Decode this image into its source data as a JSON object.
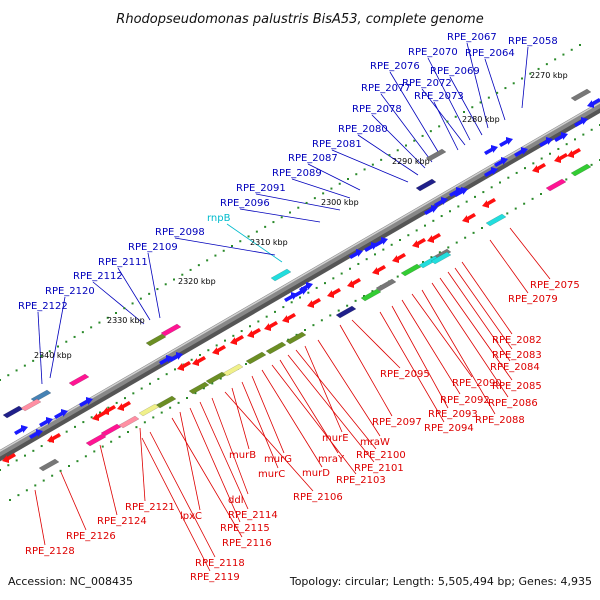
{
  "title": "Rhodopseudomonas palustris BisA53, complete genome",
  "footer": {
    "accession": "Accession: NC_008435",
    "summary": "Topology: circular; Length: 5,505,494 bp; Genes: 4,935"
  },
  "colors": {
    "upper_label": "#0000bb",
    "lower_label": "#dd0000",
    "rna_label": "#00bbcc",
    "backbone": "#888888"
  },
  "kbp_marks": [
    "2270 kbp",
    "2280 kbp",
    "2290 kbp",
    "2300 kbp",
    "2310 kbp",
    "2320 kbp",
    "2330 kbp",
    "2340 kbp"
  ],
  "upper_labels": [
    "RPE_2058",
    "RPE_2064",
    "RPE_2067",
    "RPE_2069",
    "RPE_2070",
    "RPE_2072",
    "RPE_2073",
    "RPE_2076",
    "RPE_2077",
    "RPE_2078",
    "RPE_2080",
    "RPE_2081",
    "RPE_2087",
    "RPE_2089",
    "RPE_2091",
    "RPE_2096",
    "rnpB",
    "RPE_2098",
    "RPE_2109",
    "RPE_2111",
    "RPE_2112",
    "RPE_2120",
    "RPE_2122"
  ],
  "lower_labels": [
    "RPE_2075",
    "RPE_2079",
    "RPE_2082",
    "RPE_2083",
    "RPE_2084",
    "RPE_2085",
    "RPE_2086",
    "RPE_2088",
    "RPE_2090",
    "RPE_2092",
    "RPE_2093",
    "RPE_2094",
    "RPE_2095",
    "RPE_2097",
    "mraW",
    "murE",
    "RPE_2100",
    "RPE_2101",
    "mraY",
    "RPE_2103",
    "murD",
    "murG",
    "murC",
    "murB",
    "RPE_2106",
    "ddl",
    "RPE_2114",
    "RPE_2115",
    "lpxC",
    "RPE_2116",
    "RPE_2121",
    "RPE_2118",
    "RPE_2119",
    "RPE_2124",
    "RPE_2126",
    "RPE_2128"
  ]
}
